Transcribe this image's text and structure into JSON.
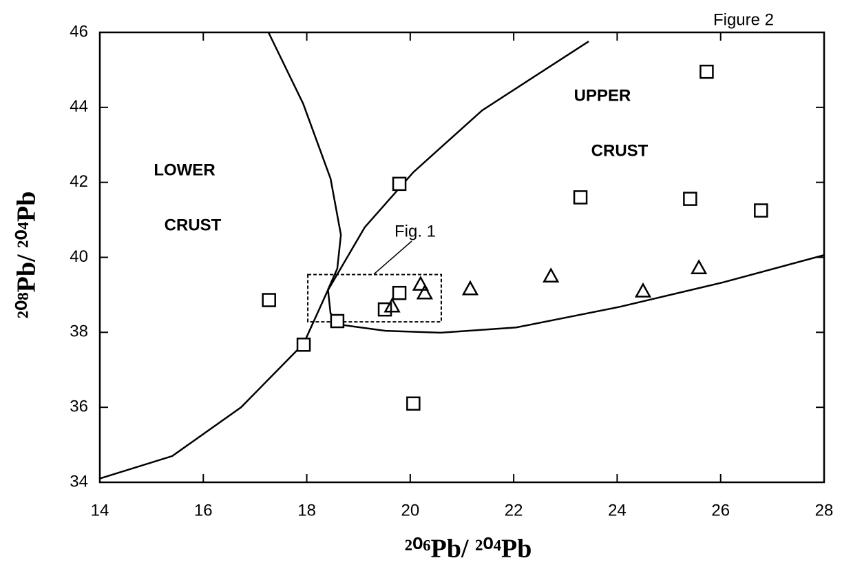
{
  "chart_data": {
    "type": "scatter",
    "title": "Figure 2",
    "x_label": "²⁰⁶Pb/ ²⁰⁴Pb",
    "y_label": "²⁰⁸Pb/ ²⁰⁴Pb",
    "xlim": [
      14,
      28
    ],
    "ylim": [
      34,
      46
    ],
    "xticks": [
      14,
      16,
      18,
      20,
      22,
      24,
      26,
      28
    ],
    "yticks": [
      34,
      36,
      38,
      40,
      42,
      44,
      46
    ],
    "series": [
      {
        "marker": "square",
        "color": "#000000",
        "x": [
          17.27,
          17.94,
          18.59,
          19.79,
          19.79,
          19.51,
          20.06,
          23.29,
          25.41,
          26.78,
          25.73
        ],
        "values": [
          38.86,
          37.67,
          38.3,
          41.96,
          39.05,
          38.61,
          36.1,
          41.6,
          41.56,
          41.25,
          44.95
        ]
      },
      {
        "marker": "triangle",
        "color": "#000000",
        "x": [
          19.65,
          20.2,
          20.28,
          21.16,
          22.72,
          24.5,
          25.58
        ],
        "values": [
          38.7,
          39.28,
          39.05,
          39.16,
          39.5,
          39.1,
          39.72
        ]
      }
    ],
    "curves": [
      {
        "x": [
          14,
          15.4,
          16.73,
          17.94,
          18.4,
          19.12,
          20.06,
          21.39,
          23.45
        ],
        "values": [
          34.1,
          34.7,
          36.0,
          37.7,
          39.1,
          40.8,
          42.27,
          43.92,
          45.76
        ]
      },
      {
        "x": [
          17.26,
          17.93,
          18.46,
          18.66,
          18.59,
          18.41,
          18.46,
          18.72,
          19.52,
          20.59,
          22.05,
          24.05,
          26.04,
          28
        ],
        "values": [
          46,
          44.1,
          42.1,
          40.6,
          39.7,
          39.14,
          38.5,
          38.19,
          38.04,
          37.99,
          38.13,
          38.68,
          39.33,
          40.06
        ]
      }
    ],
    "inset_box": {
      "label": "Fig. 1",
      "x": [
        18.02,
        20.6
      ],
      "y": [
        38.28,
        39.54
      ]
    },
    "annotations": [
      "LOWER",
      "CRUST",
      "UPPER",
      "CRUST"
    ]
  }
}
